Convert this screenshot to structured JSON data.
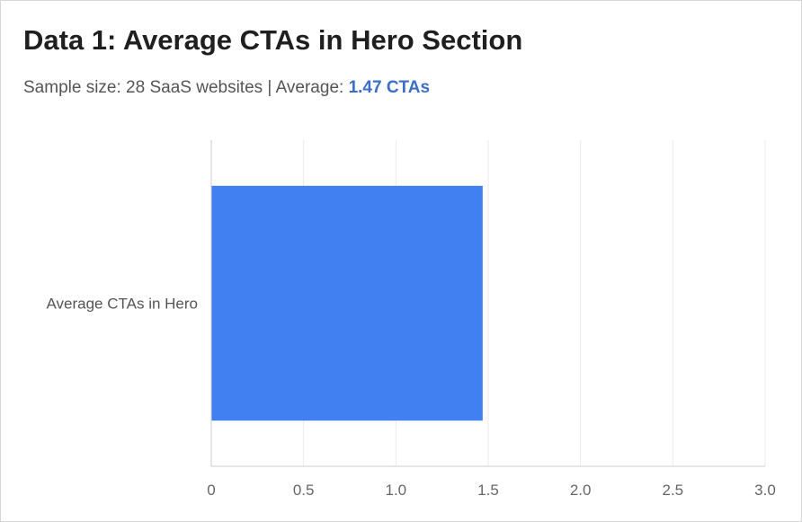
{
  "header": {
    "title": "Data 1: Average CTAs in Hero Section",
    "subtitle_prefix": "Sample size: 28 SaaS websites | Average: ",
    "subtitle_highlight": "1.47 CTAs"
  },
  "colors": {
    "bar": "#4080f0",
    "highlight": "#3d6ec5",
    "grid": "#ebebeb",
    "axis": "#cccccc"
  },
  "chart_data": {
    "type": "bar",
    "orientation": "horizontal",
    "title": "",
    "xlabel": "",
    "ylabel": "",
    "categories": [
      "Average CTAs in Hero"
    ],
    "values": [
      1.47
    ],
    "xlim": [
      0,
      3.0
    ],
    "xticks": [
      "0",
      "0.5",
      "1.0",
      "1.5",
      "2.0",
      "2.5",
      "3.0"
    ],
    "grid": true,
    "legend": "none"
  }
}
